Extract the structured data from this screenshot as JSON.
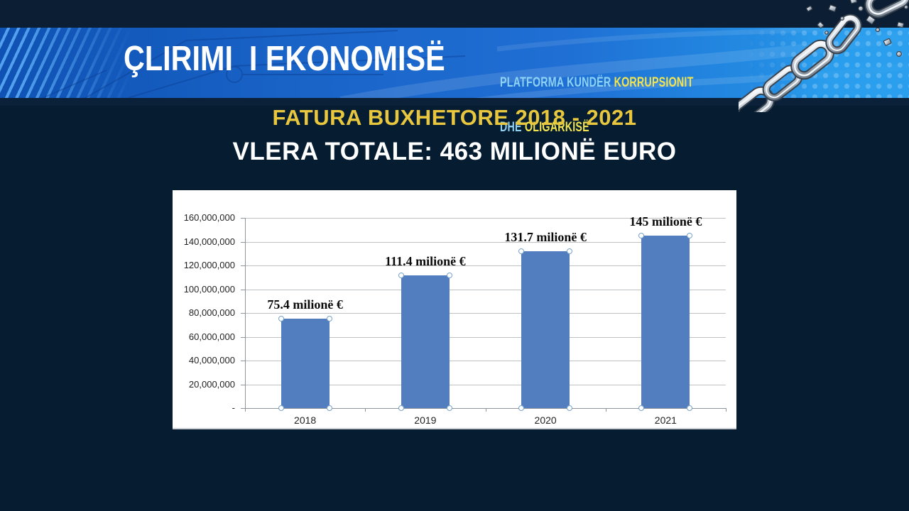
{
  "banner": {
    "title": "ÇLIRIMI  I EKONOMISË",
    "subtitle": {
      "line1_normal": "PLATFORMA KUNDËR ",
      "line1_bold": "KORRUPSIONIT",
      "line2_normal": "DHE ",
      "line2_bold": "OLIGARKISË"
    }
  },
  "titles": {
    "heading": "FATURA BUXHETORE 2018 - 2021",
    "subheading": "VLERA TOTALE: 463 MILIONË EURO"
  },
  "chart_data": {
    "type": "bar",
    "categories": [
      "2018",
      "2019",
      "2020",
      "2021"
    ],
    "values": [
      75400000,
      111400000,
      131700000,
      145000000
    ],
    "bar_labels": [
      "75.4 milionë €",
      "111.4 milionë €",
      "131.7 milionë €",
      "145 milionë €"
    ],
    "title": "",
    "xlabel": "",
    "ylabel": "",
    "ylim": [
      0,
      160000000
    ],
    "ytick_labels": [
      "-",
      "20,000,000",
      "40,000,000",
      "60,000,000",
      "80,000,000",
      "100,000,000",
      "120,000,000",
      "140,000,000",
      "160,000,000"
    ],
    "grid": true,
    "legend": false,
    "bar_color": "#527ec0",
    "panel_background": "#ffffff"
  },
  "colors": {
    "background": "#051c31",
    "top_strip": "#0c1e33",
    "banner_blue": "#1a64c8",
    "heading_yellow": "#e8c73e",
    "subtitle_light_blue": "#8ed2f4",
    "subtitle_yellow": "#f4e44e",
    "title_white": "#ffffff",
    "gridline_gray": "#bdc1c4"
  },
  "graphics": {
    "chain_icon": "broken-chain"
  }
}
